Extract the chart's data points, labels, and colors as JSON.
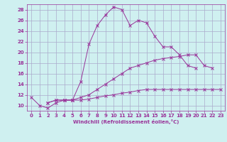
{
  "xlabel": "Windchill (Refroidissement éolien,°C)",
  "background_color": "#cff0f0",
  "line_color": "#993399",
  "grid_color": "#aaaacc",
  "xlim": [
    -0.5,
    23.5
  ],
  "ylim": [
    9,
    29
  ],
  "yticks": [
    10,
    12,
    14,
    16,
    18,
    20,
    22,
    24,
    26,
    28
  ],
  "xticks": [
    0,
    1,
    2,
    3,
    4,
    5,
    6,
    7,
    8,
    9,
    10,
    11,
    12,
    13,
    14,
    15,
    16,
    17,
    18,
    19,
    20,
    21,
    22,
    23
  ],
  "series": [
    {
      "x": [
        0,
        1,
        2,
        3,
        4,
        5,
        6,
        7,
        8,
        9,
        10,
        11,
        12,
        13,
        14,
        15,
        16,
        17,
        18,
        19,
        20,
        21,
        22,
        23
      ],
      "y": [
        11.5,
        10.0,
        9.5,
        10.5,
        11.0,
        11.0,
        14.5,
        21.5,
        25.0,
        27.0,
        28.5,
        28.0,
        25.0,
        26.0,
        25.5,
        23.0,
        21.0,
        21.0,
        19.5,
        17.5,
        17.0,
        null,
        null,
        null
      ]
    },
    {
      "x": [
        2,
        3,
        4,
        5,
        6,
        7,
        8,
        9,
        10,
        11,
        12,
        13,
        14,
        15,
        16,
        17,
        18,
        19,
        20,
        21,
        22,
        23
      ],
      "y": [
        10.5,
        11.0,
        11.0,
        11.0,
        11.5,
        12.0,
        13.0,
        14.0,
        15.0,
        16.0,
        17.0,
        17.5,
        18.0,
        18.5,
        18.8,
        19.0,
        19.2,
        19.5,
        19.5,
        17.5,
        17.0,
        null
      ]
    },
    {
      "x": [
        2,
        3,
        4,
        5,
        6,
        7,
        8,
        9,
        10,
        11,
        12,
        13,
        14,
        15,
        16,
        17,
        18,
        19,
        20,
        21,
        22,
        23
      ],
      "y": [
        10.5,
        11.0,
        11.0,
        11.0,
        11.0,
        11.2,
        11.5,
        11.8,
        12.0,
        12.3,
        12.5,
        12.8,
        13.0,
        13.0,
        13.0,
        13.0,
        13.0,
        13.0,
        13.0,
        13.0,
        13.0,
        13.0
      ]
    }
  ]
}
